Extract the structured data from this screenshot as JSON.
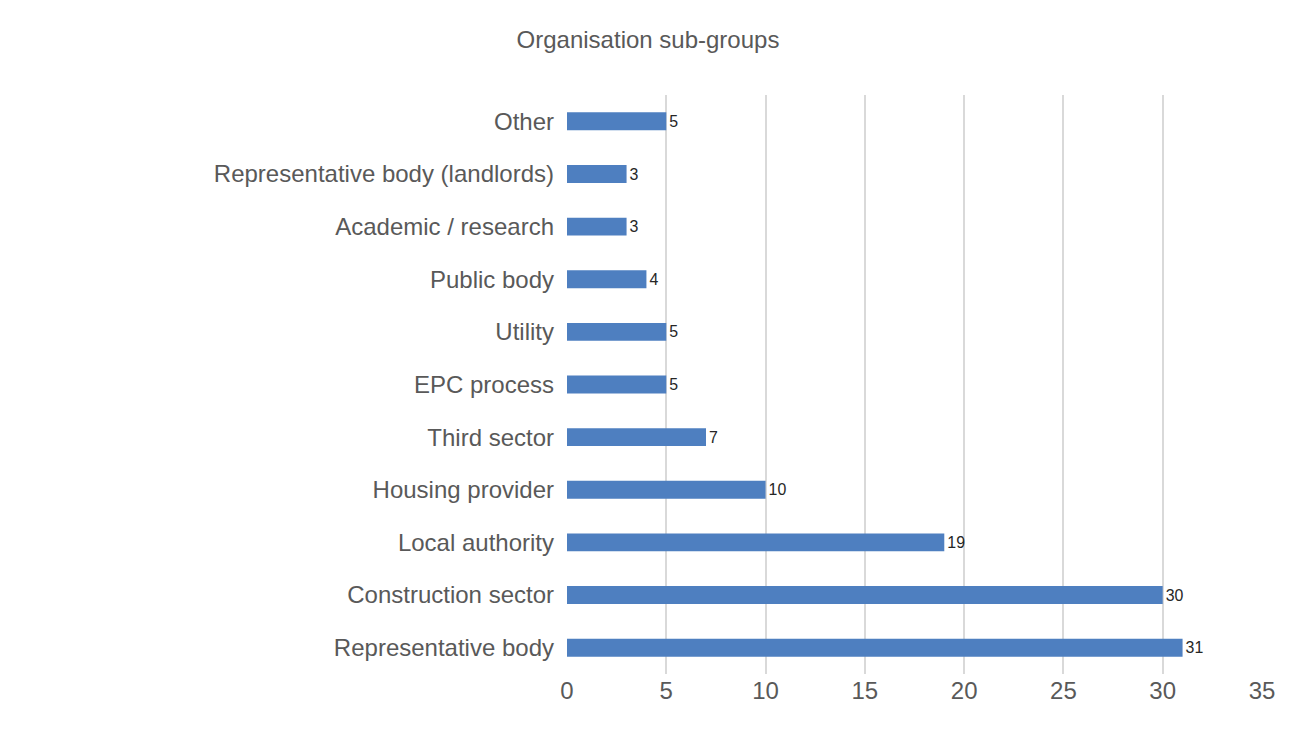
{
  "chart_data": {
    "type": "bar",
    "title": "Organisation sub-groups",
    "orientation": "horizontal",
    "categories": [
      "Representative body",
      "Construction sector",
      "Local authority",
      "Housing provider",
      "Third sector",
      "EPC process",
      "Utility",
      "Public body",
      "Academic / research",
      "Representative body (landlords)",
      "Other"
    ],
    "values": [
      31,
      30,
      19,
      10,
      7,
      5,
      5,
      4,
      3,
      3,
      5
    ],
    "color": "#4e7fc0",
    "xlim": [
      0,
      35
    ],
    "xticks": [
      0,
      5,
      10,
      15,
      20,
      25,
      30,
      35
    ],
    "grid": true,
    "data_labels": true
  }
}
